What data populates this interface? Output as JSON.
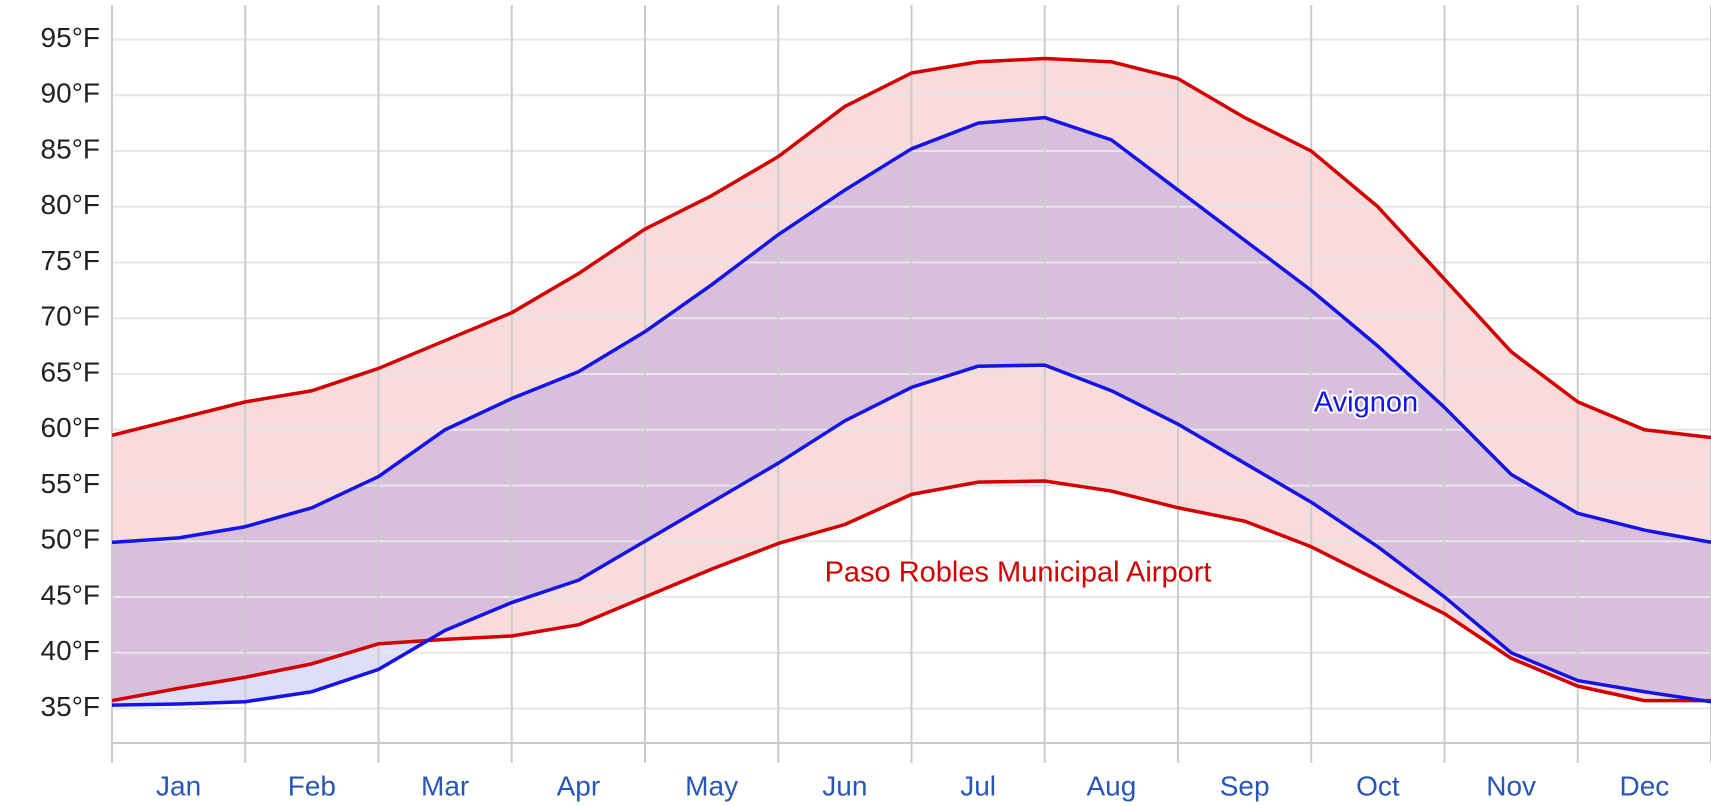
{
  "chart_data": {
    "type": "line",
    "categories": [
      null,
      "Jan",
      null,
      "Feb",
      null,
      "Mar",
      null,
      "Apr",
      null,
      "May",
      null,
      "Jun",
      null,
      "Jul",
      null,
      "Aug",
      null,
      "Sep",
      null,
      "Oct",
      null,
      "Nov",
      null,
      "Dec",
      null
    ],
    "series": [
      {
        "name": "Paso Robles Municipal Airport",
        "color": "#d40000",
        "values": [
          59.5,
          61,
          62.5,
          63.5,
          65.5,
          68,
          70.5,
          74,
          78,
          81,
          84.5,
          89,
          92,
          93,
          93.3,
          93,
          91.5,
          88,
          85,
          80,
          73.5,
          67,
          62.5,
          60,
          59.3
        ]
      },
      {
        "name": "Paso Robles Municipal Airport",
        "color": "#d40000",
        "values": [
          35.7,
          36.8,
          37.8,
          39,
          40.8,
          41.2,
          41.5,
          42.5,
          45,
          47.5,
          49.8,
          51.5,
          54.2,
          55.3,
          55.4,
          54.5,
          53,
          51.8,
          49.5,
          46.5,
          43.5,
          39.5,
          37,
          35.7,
          35.7
        ]
      },
      {
        "name": "Avignon",
        "color": "#1414e6",
        "values": [
          49.9,
          50.3,
          51.3,
          53,
          55.8,
          60,
          62.8,
          65.2,
          68.8,
          73,
          77.5,
          81.5,
          85.2,
          87.5,
          88,
          86,
          81.5,
          77,
          72.5,
          67.5,
          62,
          56,
          52.5,
          51,
          49.9
        ]
      },
      {
        "name": "Avignon",
        "color": "#1414e6",
        "values": [
          35.3,
          35.4,
          35.6,
          36.5,
          38.5,
          42,
          44.5,
          46.5,
          50,
          53.5,
          57,
          60.8,
          63.8,
          65.7,
          65.8,
          63.5,
          60.5,
          57,
          53.5,
          49.5,
          45,
          40,
          37.5,
          36.5,
          35.6
        ]
      }
    ],
    "annotations": [
      "Avignon",
      "Paso Robles Municipal Airport"
    ],
    "ylim": [
      31.9,
      98.1
    ],
    "yticks": [
      {
        "value": 35,
        "label": "35°F"
      },
      {
        "value": 40,
        "label": "40°F"
      },
      {
        "value": 45,
        "label": "45°F"
      },
      {
        "value": 50,
        "label": "50°F"
      },
      {
        "value": 55,
        "label": "55°F"
      },
      {
        "value": 60,
        "label": "60°F"
      },
      {
        "value": 65,
        "label": "65°F"
      },
      {
        "value": 70,
        "label": "70°F"
      },
      {
        "value": 75,
        "label": "75°F"
      },
      {
        "value": 80,
        "label": "80°F"
      },
      {
        "value": 85,
        "label": "85°F"
      },
      {
        "value": 90,
        "label": "90°F"
      },
      {
        "value": 95,
        "label": "95°F"
      }
    ],
    "grid": true
  }
}
